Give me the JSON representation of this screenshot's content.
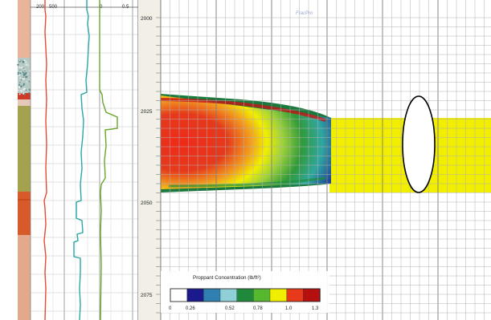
{
  "track_headers": {
    "gamma_ray": [
      "200",
      "500"
    ],
    "resistivity": [
      "0",
      "0.5"
    ]
  },
  "depth_axis": {
    "labels": [
      "2000",
      "2025",
      "2050",
      "2075"
    ],
    "range": [
      1992,
      2080
    ]
  },
  "watermark": "FracPro",
  "colorbar": {
    "title": "Proppant Concentration (lb/ft²)",
    "tick_labels": [
      "0",
      "0.26",
      "0.52",
      "0.78",
      "1.0",
      "1.3"
    ],
    "colors": [
      "#ffffff",
      "#1a1a8c",
      "#2f7fb0",
      "#8fd0d6",
      "#1f8a3c",
      "#55b82e",
      "#f2ee00",
      "#e83a1a",
      "#b50f0f"
    ]
  },
  "lithology_colors": [
    "#e8b49a",
    "#b7c9c4",
    "#a5a24f",
    "#d65a2a",
    "#e2a98d"
  ],
  "curve_colors": {
    "gamma_ray": "#e8473a",
    "sonic": "#2aa6a6",
    "resistivity": "#6aa62a"
  },
  "fracture_colors": {
    "outer_band": "#1a7a3e",
    "fill": "#f2ee00",
    "stroke": "#000000"
  }
}
